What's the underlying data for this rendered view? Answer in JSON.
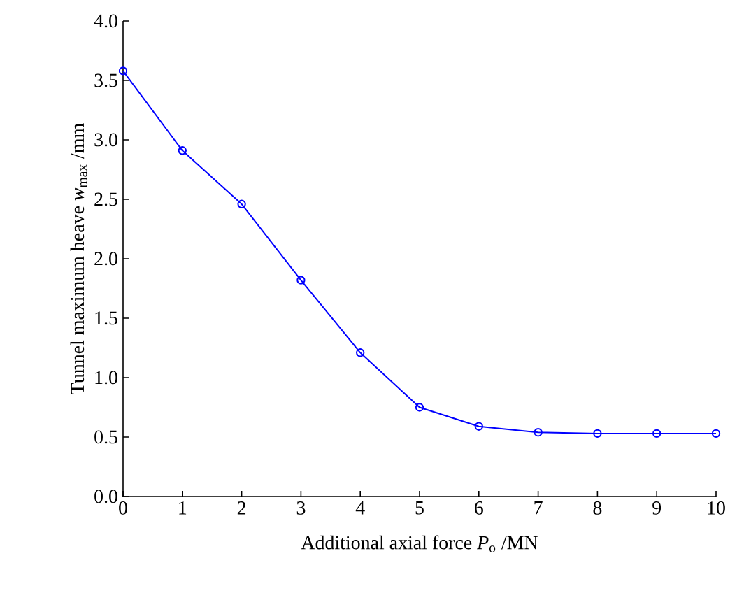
{
  "chart_data": {
    "type": "line",
    "xlabel": "Additional axial force *P*$_{o}$ /MN",
    "ylabel": "Tunnel maximum heave *w*$_{max}$ /mm",
    "x": [
      0,
      1,
      2,
      3,
      4,
      5,
      6,
      7,
      8,
      9,
      10
    ],
    "series": [
      {
        "color": "#0000ff",
        "values": [
          3.58,
          2.91,
          2.46,
          1.82,
          1.21,
          0.75,
          0.59,
          0.54,
          0.53,
          0.53,
          0.53
        ]
      }
    ],
    "xlim": [
      0,
      10
    ],
    "ylim": [
      0,
      4
    ],
    "xticks": [
      0,
      1,
      2,
      3,
      4,
      5,
      6,
      7,
      8,
      9,
      10
    ],
    "yticks": [
      {
        "value": 0,
        "label": "0.0"
      },
      {
        "value": 0.5,
        "label": "0.5"
      },
      {
        "value": 1,
        "label": "1.0"
      },
      {
        "value": 1.5,
        "label": "1.5"
      },
      {
        "value": 2,
        "label": "2.0"
      },
      {
        "value": 2.5,
        "label": "2.5"
      },
      {
        "value": 3,
        "label": "3.0"
      },
      {
        "value": 3.5,
        "label": "3.5"
      },
      {
        "value": 4,
        "label": "4.0"
      }
    ],
    "marker": "circle",
    "line_style": "solid"
  }
}
